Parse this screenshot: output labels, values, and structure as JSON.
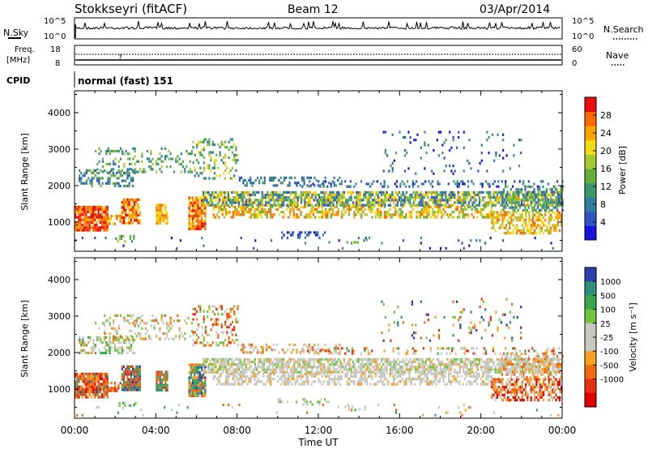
{
  "header": {
    "station": "Stokkseyri (fitACF)",
    "beam": "Beam 12",
    "date": "03/Apr/2014"
  },
  "top_panels": {
    "nsky_label": "N.Sky",
    "nsky_ticks": [
      "10^5",
      "10^0"
    ],
    "nsearch_label": "N.Search",
    "nsearch_ticks": [
      "10^5",
      "10^0"
    ],
    "freq_label_1": "Freq.",
    "freq_label_2": "[MHz]",
    "freq_ticks": [
      "18",
      "8"
    ],
    "nave_label": "Nave",
    "nave_ticks": [
      "60",
      "0"
    ],
    "cpid_label": "CPID",
    "cpid_value": "normal (fast) 151"
  },
  "chart_data": [
    {
      "type": "heatmap",
      "ylabel": "Slant Range [km]",
      "ylim": [
        200,
        4600
      ],
      "yticks": [
        "1000",
        "2000",
        "3000",
        "4000"
      ],
      "colorbar": {
        "label": "Power [dB]",
        "range": [
          0,
          32
        ],
        "ticks": [
          "4",
          "8",
          "12",
          "16",
          "20",
          "24",
          "28"
        ],
        "colors": [
          "#1515e0",
          "#2d55c8",
          "#2f7fa0",
          "#3c9a6a",
          "#66b13c",
          "#a6c832",
          "#f2dc14",
          "#ffa500",
          "#ff6a00",
          "#e80e0e"
        ]
      }
    },
    {
      "type": "heatmap",
      "ylabel": "Slant Range [km]",
      "ylim": [
        200,
        4600
      ],
      "yticks": [
        "1000",
        "2000",
        "3000",
        "4000"
      ],
      "xlabel": "Time UT",
      "xticks": [
        "00:00",
        "04:00",
        "08:00",
        "12:00",
        "16:00",
        "20:00",
        "00:00"
      ],
      "colorbar": {
        "label": "Velocity [m s⁻¹]",
        "ticks": [
          "1000",
          "500",
          "100",
          "25",
          "-25",
          "-100",
          "-500",
          "-1000"
        ],
        "colors": [
          "#2a3fb0",
          "#2f8f7a",
          "#3aa84a",
          "#6cc83a",
          "#c8c8c0",
          "#c8c8c0",
          "#f5a020",
          "#ee6a10",
          "#e83010",
          "#e00000"
        ]
      }
    }
  ]
}
